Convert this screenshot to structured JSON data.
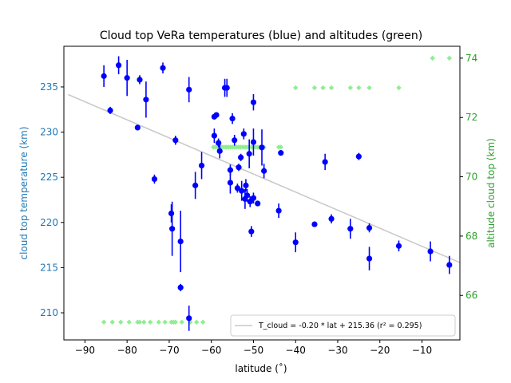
{
  "chart_data": {
    "type": "scatter",
    "title": "Cloud top VeRa temperatures (blue) and altitudes (green)",
    "xlabel": "latitude (˚)",
    "ylabel_left": "cloud top temperature (km)",
    "ylabel_right": "altitude cloud top (km)",
    "xlim": [
      -95,
      -1
    ],
    "ylim_left": [
      207,
      239.5
    ],
    "ylim_right": [
      64.5,
      74.4
    ],
    "xticks": [
      -90,
      -80,
      -70,
      -60,
      -50,
      -40,
      -30,
      -20,
      -10
    ],
    "xtick_labels": [
      "−90",
      "−80",
      "−70",
      "−60",
      "−50",
      "−40",
      "−30",
      "−20",
      "−10"
    ],
    "yticks_left": [
      210,
      215,
      220,
      225,
      230,
      235
    ],
    "yticks_right": [
      66,
      68,
      70,
      72,
      74
    ],
    "colors": {
      "temperature": "#0000ff",
      "altitude": "#90ee90",
      "fit": "#c8c8c8",
      "left_axis_label": "#1f77b4",
      "right_axis_label": "#2ca02c"
    },
    "legend": {
      "placement": "lower right",
      "entries": [
        {
          "label": "T_cloud = -0.20 * lat + 215.36 (r² = 0.295)",
          "marker": "line"
        }
      ]
    },
    "fit": {
      "slope": -0.2,
      "intercept": 215.36,
      "r2": 0.295,
      "x_range": [
        -94,
        -1
      ]
    },
    "series": [
      {
        "name": "temperature",
        "axis": "left",
        "marker": "circle",
        "points": [
          [
            -85.5,
            236.2,
            1.2
          ],
          [
            -84.0,
            232.4,
            0.4
          ],
          [
            -82.0,
            237.4,
            1.0
          ],
          [
            -80.0,
            236.0,
            2.0
          ],
          [
            -77.5,
            230.5,
            0.3
          ],
          [
            -77.0,
            235.8,
            0.5
          ],
          [
            -75.5,
            233.6,
            2.0
          ],
          [
            -73.5,
            224.8,
            0.5
          ],
          [
            -71.5,
            237.1,
            0.6
          ],
          [
            -69.5,
            221.0,
            1.0
          ],
          [
            -69.3,
            219.3,
            3.0
          ],
          [
            -68.5,
            229.1,
            0.5
          ],
          [
            -67.3,
            217.9,
            3.4
          ],
          [
            -67.3,
            212.8,
            0.4
          ],
          [
            -65.3,
            234.7,
            1.4
          ],
          [
            -65.3,
            209.4,
            1.4
          ],
          [
            -63.8,
            224.1,
            1.5
          ],
          [
            -62.3,
            226.3,
            1.5
          ],
          [
            -59.3,
            231.7,
            0.3
          ],
          [
            -59.3,
            229.6,
            0.8
          ],
          [
            -58.8,
            231.9,
            0.2
          ],
          [
            -58.3,
            228.8,
            0.5
          ],
          [
            -58.0,
            227.9,
            0.8
          ],
          [
            -56.8,
            234.9,
            1.0
          ],
          [
            -56.3,
            234.9,
            1.0
          ],
          [
            -55.5,
            225.8,
            0.6
          ],
          [
            -55.5,
            224.4,
            1.2
          ],
          [
            -55.0,
            231.5,
            0.6
          ],
          [
            -54.5,
            229.1,
            0.6
          ],
          [
            -53.8,
            223.8,
            0.5
          ],
          [
            -53.5,
            226.1,
            0.4
          ],
          [
            -53.0,
            227.2,
            0.4
          ],
          [
            -52.8,
            223.5,
            1.1
          ],
          [
            -52.3,
            229.8,
            0.6
          ],
          [
            -52.0,
            222.6,
            1.1
          ],
          [
            -51.8,
            224.1,
            0.7
          ],
          [
            -51.5,
            223.0,
            0.7
          ],
          [
            -51.0,
            227.6,
            1.6
          ],
          [
            -50.8,
            222.3,
            0.6
          ],
          [
            -50.5,
            219.0,
            0.6
          ],
          [
            -50.0,
            228.9,
            1.5
          ],
          [
            -50.0,
            233.3,
            0.9
          ],
          [
            -50.0,
            222.7,
            0.6
          ],
          [
            -49.0,
            222.1,
            0.3
          ],
          [
            -48.0,
            228.3,
            2.0
          ],
          [
            -47.5,
            225.7,
            0.8
          ],
          [
            -44.0,
            221.3,
            0.8
          ],
          [
            -43.5,
            227.7,
            0.3
          ],
          [
            -40.0,
            217.8,
            1.1
          ],
          [
            -35.5,
            219.8,
            0.3
          ],
          [
            -33.0,
            226.7,
            0.9
          ],
          [
            -31.5,
            220.4,
            0.5
          ],
          [
            -27.0,
            219.3,
            1.1
          ],
          [
            -25.0,
            227.3,
            0.4
          ],
          [
            -22.5,
            216.0,
            1.3
          ],
          [
            -22.5,
            219.4,
            0.5
          ],
          [
            -15.5,
            217.4,
            0.6
          ],
          [
            -8.0,
            216.8,
            1.1
          ],
          [
            -3.5,
            215.3,
            1.0
          ]
        ]
      },
      {
        "name": "altitude",
        "axis": "right",
        "marker": "diamond",
        "points": [
          [
            -85.5,
            65.1
          ],
          [
            -83.5,
            65.1
          ],
          [
            -81.5,
            65.1
          ],
          [
            -79.5,
            65.1
          ],
          [
            -77.5,
            65.1
          ],
          [
            -77.0,
            65.1
          ],
          [
            -76.0,
            65.1
          ],
          [
            -74.5,
            65.1
          ],
          [
            -72.5,
            65.1
          ],
          [
            -71.0,
            65.1
          ],
          [
            -69.5,
            65.1
          ],
          [
            -69.0,
            65.1
          ],
          [
            -68.5,
            65.1
          ],
          [
            -67.0,
            65.1
          ],
          [
            -65.0,
            65.1
          ],
          [
            -63.5,
            65.1
          ],
          [
            -62.0,
            65.1
          ],
          [
            -59.5,
            71.0
          ],
          [
            -59.0,
            71.0
          ],
          [
            -58.5,
            71.0
          ],
          [
            -58.0,
            71.0
          ],
          [
            -57.5,
            71.0
          ],
          [
            -57.0,
            71.0
          ],
          [
            -56.5,
            71.0
          ],
          [
            -56.0,
            71.0
          ],
          [
            -55.5,
            71.0
          ],
          [
            -55.0,
            71.0
          ],
          [
            -54.5,
            71.0
          ],
          [
            -54.0,
            71.0
          ],
          [
            -53.5,
            71.0
          ],
          [
            -53.0,
            71.0
          ],
          [
            -52.5,
            71.0
          ],
          [
            -52.0,
            71.0
          ],
          [
            -51.5,
            71.0
          ],
          [
            -51.0,
            71.0
          ],
          [
            -50.5,
            71.0
          ],
          [
            -50.0,
            71.0
          ],
          [
            -49.5,
            71.0
          ],
          [
            -49.0,
            71.0
          ],
          [
            -48.5,
            71.0
          ],
          [
            -48.0,
            71.0
          ],
          [
            -47.5,
            71.0
          ],
          [
            -44.0,
            71.0
          ],
          [
            -43.5,
            71.0
          ],
          [
            -40.0,
            73.0
          ],
          [
            -35.5,
            73.0
          ],
          [
            -33.5,
            73.0
          ],
          [
            -31.5,
            73.0
          ],
          [
            -27.0,
            73.0
          ],
          [
            -25.0,
            73.0
          ],
          [
            -22.5,
            73.0
          ],
          [
            -15.5,
            73.0
          ],
          [
            -7.5,
            74.0
          ],
          [
            -3.5,
            74.0
          ]
        ]
      }
    ]
  }
}
